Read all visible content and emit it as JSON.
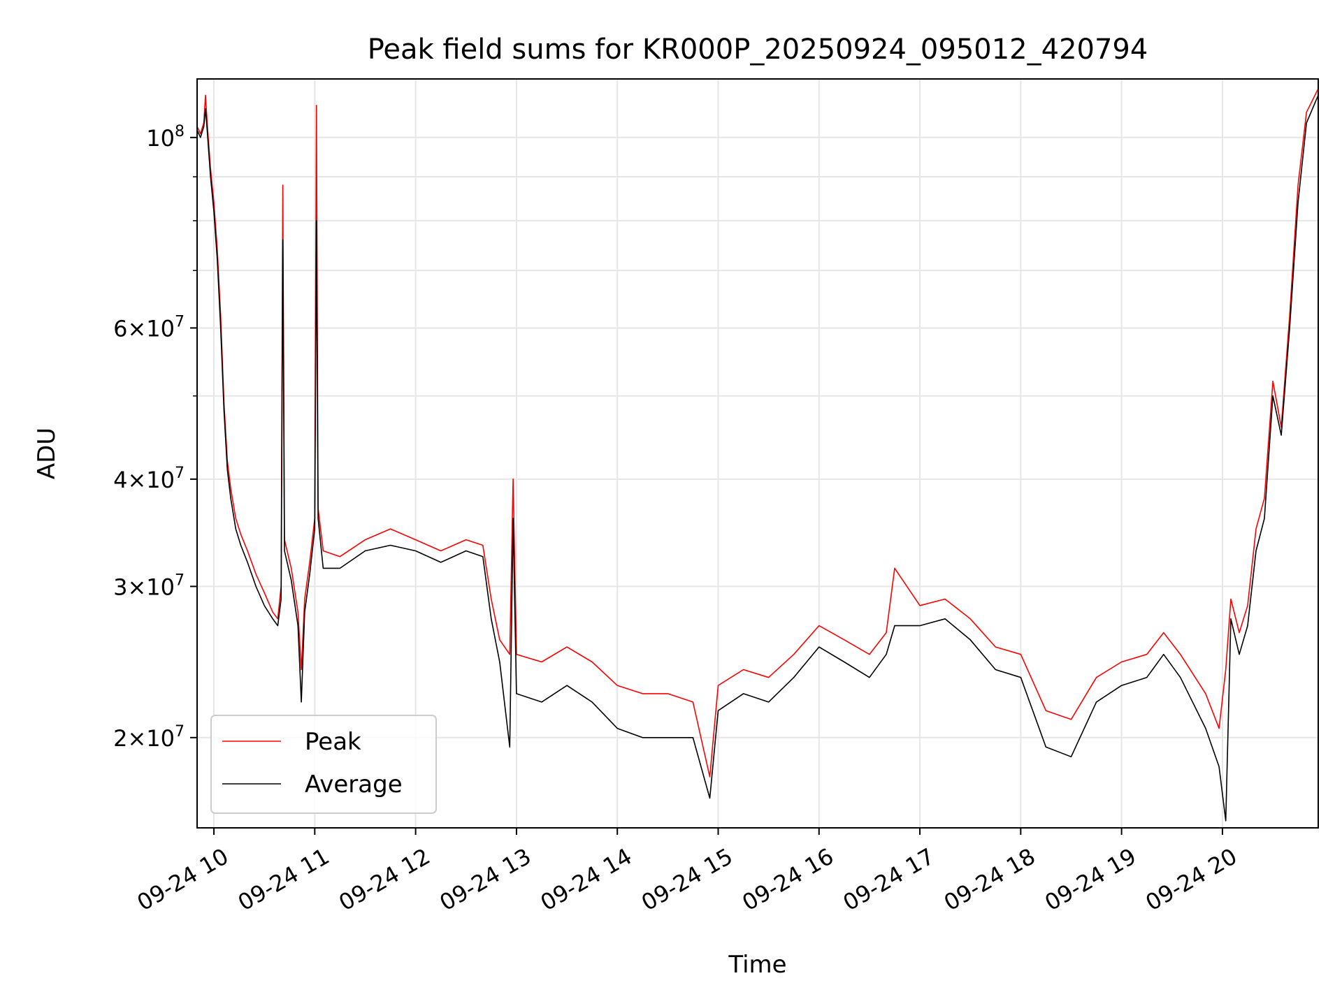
{
  "chart_data": {
    "type": "line",
    "title": "Peak field sums for KR000P_20250924_095012_420794",
    "xlabel": "Time",
    "ylabel": "ADU",
    "yscale": "log",
    "xlim": [
      "09-24 09:50",
      "09-24 20:57"
    ],
    "ylim": [
      15700000,
      117000000
    ],
    "grid": true,
    "legend_position": "lower-left",
    "x_ticks": [
      "09-24 10",
      "09-24 11",
      "09-24 12",
      "09-24 13",
      "09-24 14",
      "09-24 15",
      "09-24 16",
      "09-24 17",
      "09-24 18",
      "09-24 19",
      "09-24 20"
    ],
    "y_ticks": [
      {
        "value": 20000000,
        "mantissa": "2",
        "base": "10",
        "exp": "7"
      },
      {
        "value": 30000000,
        "mantissa": "3",
        "base": "10",
        "exp": "7"
      },
      {
        "value": 40000000,
        "mantissa": "4",
        "base": "10",
        "exp": "7"
      },
      {
        "value": 60000000,
        "mantissa": "6",
        "base": "10",
        "exp": "7"
      },
      {
        "value": 100000000,
        "mantissa": "",
        "base": "10",
        "exp": "8"
      }
    ],
    "y_minor_ticks": [
      50000000,
      70000000,
      80000000,
      90000000
    ],
    "series": [
      {
        "name": "Peak",
        "color": "#ff0000",
        "x": [
          "09-24 09:50",
          "09-24 09:52",
          "09-24 09:54",
          "09-24 09:55",
          "09-24 09:56",
          "09-24 09:58",
          "09-24 10:00",
          "09-24 10:02",
          "09-24 10:04",
          "09-24 10:06",
          "09-24 10:08",
          "09-24 10:10",
          "09-24 10:13",
          "09-24 10:16",
          "09-24 10:20",
          "09-24 10:25",
          "09-24 10:30",
          "09-24 10:35",
          "09-24 10:38",
          "09-24 10:40",
          "09-24 10:41",
          "09-24 10:42",
          "09-24 10:46",
          "09-24 10:50",
          "09-24 10:52",
          "09-24 10:54",
          "09-24 10:57",
          "09-24 11:00",
          "09-24 11:01",
          "09-24 11:02",
          "09-24 11:05",
          "09-24 11:15",
          "09-24 11:30",
          "09-24 11:45",
          "09-24 12:00",
          "09-24 12:15",
          "09-24 12:30",
          "09-24 12:40",
          "09-24 12:45",
          "09-24 12:50",
          "09-24 12:56",
          "09-24 12:58",
          "09-24 13:00",
          "09-24 13:15",
          "09-24 13:30",
          "09-24 13:45",
          "09-24 14:00",
          "09-24 14:15",
          "09-24 14:30",
          "09-24 14:45",
          "09-24 14:55",
          "09-24 15:00",
          "09-24 15:15",
          "09-24 15:30",
          "09-24 15:45",
          "09-24 16:00",
          "09-24 16:15",
          "09-24 16:30",
          "09-24 16:40",
          "09-24 16:45",
          "09-24 17:00",
          "09-24 17:15",
          "09-24 17:30",
          "09-24 17:45",
          "09-24 18:00",
          "09-24 18:15",
          "09-24 18:30",
          "09-24 18:45",
          "09-24 19:00",
          "09-24 19:15",
          "09-24 19:25",
          "09-24 19:35",
          "09-24 19:50",
          "09-24 19:58",
          "09-24 20:02",
          "09-24 20:05",
          "09-24 20:10",
          "09-24 20:15",
          "09-24 20:20",
          "09-24 20:25",
          "09-24 20:30",
          "09-24 20:35",
          "09-24 20:40",
          "09-24 20:45",
          "09-24 20:50",
          "09-24 20:57"
        ],
        "y": [
          103000000,
          101000000,
          104000000,
          112000000,
          104000000,
          92000000,
          84000000,
          74000000,
          62000000,
          49000000,
          42000000,
          39000000,
          36000000,
          34500000,
          33000000,
          31000000,
          29500000,
          28000000,
          27500000,
          30000000,
          88000000,
          34000000,
          31500000,
          28000000,
          24000000,
          29000000,
          32000000,
          36000000,
          109000000,
          37000000,
          33000000,
          32500000,
          34000000,
          35000000,
          34000000,
          33000000,
          34000000,
          33500000,
          29000000,
          26000000,
          25000000,
          40000000,
          25000000,
          24500000,
          25500000,
          24500000,
          23000000,
          22500000,
          22500000,
          22000000,
          18000000,
          23000000,
          24000000,
          23500000,
          25000000,
          27000000,
          26000000,
          25000000,
          26500000,
          31500000,
          28500000,
          29000000,
          27500000,
          25500000,
          25000000,
          21500000,
          21000000,
          23500000,
          24500000,
          25000000,
          26500000,
          25000000,
          22500000,
          20500000,
          24000000,
          29000000,
          26500000,
          28500000,
          35000000,
          38000000,
          52000000,
          46000000,
          62000000,
          88000000,
          107000000,
          114000000
        ]
      },
      {
        "name": "Average",
        "color": "#000000",
        "x": [
          "09-24 09:50",
          "09-24 09:52",
          "09-24 09:54",
          "09-24 09:55",
          "09-24 09:56",
          "09-24 09:58",
          "09-24 10:00",
          "09-24 10:02",
          "09-24 10:04",
          "09-24 10:06",
          "09-24 10:08",
          "09-24 10:10",
          "09-24 10:13",
          "09-24 10:16",
          "09-24 10:20",
          "09-24 10:25",
          "09-24 10:30",
          "09-24 10:35",
          "09-24 10:38",
          "09-24 10:40",
          "09-24 10:41",
          "09-24 10:42",
          "09-24 10:46",
          "09-24 10:50",
          "09-24 10:52",
          "09-24 10:54",
          "09-24 10:57",
          "09-24 11:00",
          "09-24 11:01",
          "09-24 11:02",
          "09-24 11:05",
          "09-24 11:15",
          "09-24 11:30",
          "09-24 11:45",
          "09-24 12:00",
          "09-24 12:15",
          "09-24 12:30",
          "09-24 12:40",
          "09-24 12:45",
          "09-24 12:50",
          "09-24 12:56",
          "09-24 12:58",
          "09-24 13:00",
          "09-24 13:15",
          "09-24 13:30",
          "09-24 13:45",
          "09-24 14:00",
          "09-24 14:15",
          "09-24 14:30",
          "09-24 14:45",
          "09-24 14:55",
          "09-24 15:00",
          "09-24 15:15",
          "09-24 15:30",
          "09-24 15:45",
          "09-24 16:00",
          "09-24 16:15",
          "09-24 16:30",
          "09-24 16:40",
          "09-24 16:45",
          "09-24 17:00",
          "09-24 17:15",
          "09-24 17:30",
          "09-24 17:45",
          "09-24 18:00",
          "09-24 18:15",
          "09-24 18:30",
          "09-24 18:45",
          "09-24 19:00",
          "09-24 19:15",
          "09-24 19:25",
          "09-24 19:35",
          "09-24 19:50",
          "09-24 19:58",
          "09-24 20:02",
          "09-24 20:05",
          "09-24 20:10",
          "09-24 20:15",
          "09-24 20:20",
          "09-24 20:25",
          "09-24 20:30",
          "09-24 20:35",
          "09-24 20:40",
          "09-24 20:45",
          "09-24 20:50",
          "09-24 20:57"
        ],
        "y": [
          102000000,
          100000000,
          103000000,
          108000000,
          102000000,
          90000000,
          82000000,
          72000000,
          60000000,
          48000000,
          41000000,
          38000000,
          35000000,
          33500000,
          32000000,
          30000000,
          28500000,
          27500000,
          27000000,
          29000000,
          76000000,
          33000000,
          30500000,
          27000000,
          22000000,
          28000000,
          31000000,
          35000000,
          80000000,
          36000000,
          31500000,
          31500000,
          33000000,
          33500000,
          33000000,
          32000000,
          33000000,
          32500000,
          27500000,
          24500000,
          19500000,
          36000000,
          22500000,
          22000000,
          23000000,
          22000000,
          20500000,
          20000000,
          20000000,
          20000000,
          17000000,
          21500000,
          22500000,
          22000000,
          23500000,
          25500000,
          24500000,
          23500000,
          25000000,
          27000000,
          27000000,
          27500000,
          26000000,
          24000000,
          23500000,
          19500000,
          19000000,
          22000000,
          23000000,
          23500000,
          25000000,
          23500000,
          20500000,
          18500000,
          16000000,
          27500000,
          25000000,
          27000000,
          33000000,
          36000000,
          50000000,
          45000000,
          60000000,
          84000000,
          104000000,
          112000000
        ]
      }
    ]
  }
}
